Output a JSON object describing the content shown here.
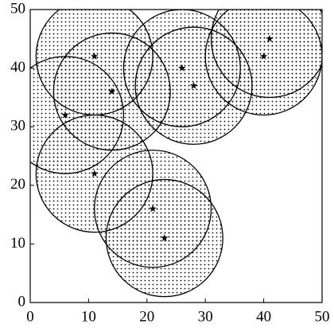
{
  "chart_data": {
    "type": "scatter",
    "x": [
      11,
      14,
      6,
      11,
      26,
      28,
      41,
      40,
      21,
      23
    ],
    "y": [
      42,
      36,
      32,
      22,
      40,
      37,
      45,
      42,
      16,
      11
    ],
    "radius": 10,
    "color": "#000000",
    "xlim": [
      0,
      50
    ],
    "ylim": [
      0,
      50
    ],
    "xticks": [
      0,
      10,
      20,
      30,
      40,
      50
    ],
    "yticks": [
      0,
      10,
      20,
      30,
      40,
      50
    ]
  }
}
